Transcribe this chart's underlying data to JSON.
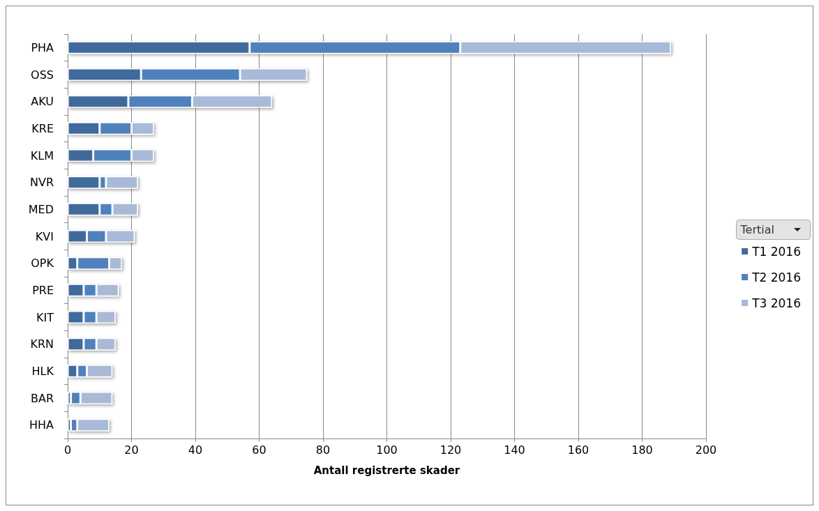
{
  "chart_data": {
    "type": "bar",
    "orientation": "horizontal",
    "stacked": true,
    "xlabel": "Antall registrerte skader",
    "legend_title": "Tertial",
    "legend": "right",
    "grid": "x",
    "categories": [
      "PHA",
      "OSS",
      "AKU",
      "KRE",
      "KLM",
      "NVR",
      "MED",
      "KVI",
      "OPK",
      "PRE",
      "KIT",
      "KRN",
      "HLK",
      "BAR",
      "HHA"
    ],
    "xlim": [
      0,
      200
    ],
    "xticks": [
      0,
      20,
      40,
      60,
      80,
      100,
      120,
      140,
      160,
      180,
      200
    ],
    "series": [
      {
        "name": "T1 2016",
        "color": "#3f6a9c",
        "values": [
          57,
          23,
          19,
          10,
          8,
          10,
          10,
          6,
          3,
          5,
          5,
          5,
          3,
          1,
          1
        ]
      },
      {
        "name": "T2 2016",
        "color": "#4f81bd",
        "values": [
          66,
          31,
          20,
          10,
          12,
          2,
          4,
          6,
          10,
          4,
          4,
          4,
          3,
          3,
          2
        ]
      },
      {
        "name": "T3 2016",
        "color": "#a9b9d8",
        "values": [
          66,
          21,
          25,
          7,
          7,
          10,
          8,
          9,
          4,
          7,
          6,
          6,
          8,
          10,
          10
        ]
      }
    ]
  }
}
